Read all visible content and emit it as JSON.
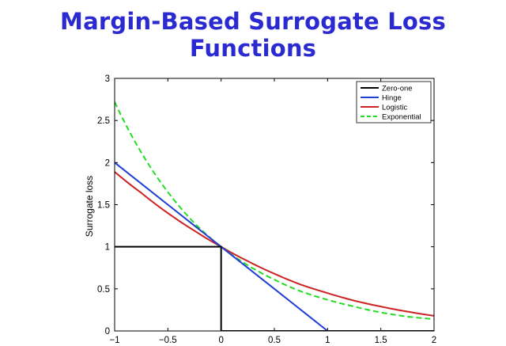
{
  "slide": {
    "title": "Margin-Based Surrogate Loss Functions"
  },
  "colors": {
    "title": "#2a2ad0",
    "zero_one": "#000000",
    "hinge": "#1f3fd6",
    "logistic": "#cc2222",
    "exponential": "#22dd22"
  },
  "chart_data": {
    "type": "line",
    "title": "",
    "xlabel": "",
    "ylabel": "Surrogate loss",
    "xlim": [
      -1,
      2
    ],
    "ylim": [
      0,
      3
    ],
    "xticks": [
      "−1",
      "−0.5",
      "0",
      "0.5",
      "1",
      "1.5",
      "2"
    ],
    "xtick_values": [
      -1,
      -0.5,
      0,
      0.5,
      1,
      1.5,
      2
    ],
    "yticks": [
      "0",
      "0.5",
      "1",
      "1.5",
      "2",
      "2.5",
      "3"
    ],
    "ytick_values": [
      0,
      0.5,
      1,
      1.5,
      2,
      2.5,
      3
    ],
    "grid": false,
    "legend_position": "top-right",
    "series": [
      {
        "name": "Zero-one",
        "style": "solid",
        "x": [
          -1,
          0,
          0,
          2
        ],
        "y": [
          1,
          1,
          0,
          0
        ]
      },
      {
        "name": "Hinge",
        "style": "solid",
        "x": [
          -1,
          -0.5,
          0,
          0.5,
          1,
          1.5,
          2
        ],
        "y": [
          2,
          1.5,
          1,
          0.5,
          0,
          0,
          0
        ]
      },
      {
        "name": "Logistic",
        "style": "solid",
        "x": [
          -1,
          -0.75,
          -0.5,
          -0.25,
          0,
          0.25,
          0.5,
          0.75,
          1,
          1.25,
          1.5,
          1.75,
          2
        ],
        "y": [
          1.89,
          1.64,
          1.4,
          1.19,
          1.0,
          0.83,
          0.68,
          0.55,
          0.45,
          0.36,
          0.29,
          0.23,
          0.18
        ]
      },
      {
        "name": "Exponential",
        "style": "dashed",
        "x": [
          -1,
          -0.75,
          -0.5,
          -0.25,
          0,
          0.25,
          0.5,
          0.75,
          1,
          1.25,
          1.5,
          1.75,
          2
        ],
        "y": [
          2.72,
          2.12,
          1.65,
          1.28,
          1.0,
          0.78,
          0.61,
          0.47,
          0.37,
          0.29,
          0.22,
          0.17,
          0.14
        ]
      }
    ]
  }
}
